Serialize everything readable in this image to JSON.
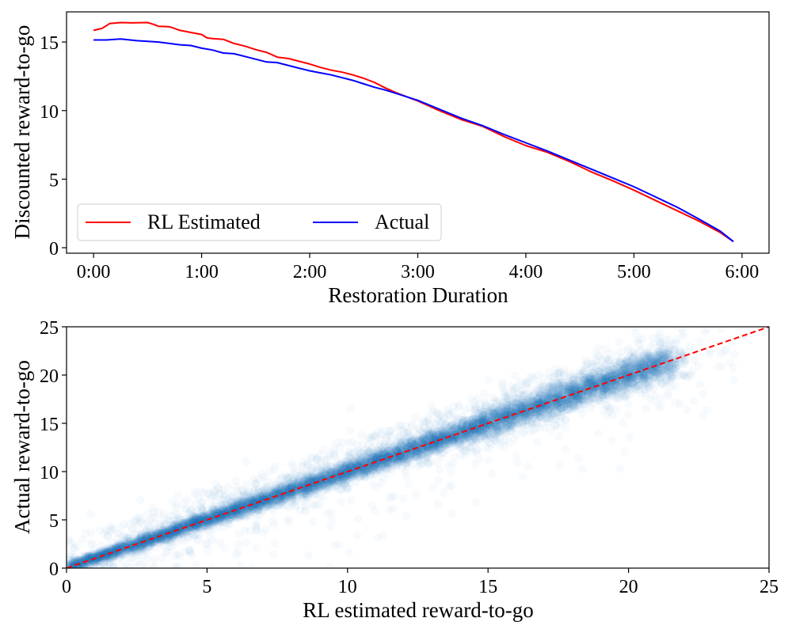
{
  "colors": {
    "estimated": "#ff0000",
    "actual": "#0000ff",
    "scatter": "#1f77b4",
    "diagonal": "#ff0000"
  },
  "chart_data": [
    {
      "type": "line",
      "xlabel": "Restoration Duration",
      "ylabel": "Discounted reward-to-go",
      "xlim": [
        -0.25,
        6.25
      ],
      "ylim": [
        -0.4,
        17.2
      ],
      "xticks": [
        0,
        1,
        2,
        3,
        4,
        5,
        6
      ],
      "xtick_labels": [
        "0:00",
        "1:00",
        "2:00",
        "3:00",
        "4:00",
        "5:00",
        "6:00"
      ],
      "yticks": [
        0,
        5,
        10,
        15
      ],
      "ytick_labels": [
        "0",
        "5",
        "10",
        "15"
      ],
      "legend": {
        "position": "lower-left",
        "columns": 2,
        "entries": [
          "RL Estimated",
          "Actual"
        ]
      },
      "series": [
        {
          "name": "RL Estimated",
          "x": [
            0,
            0.08,
            0.15,
            0.25,
            0.35,
            0.5,
            0.55,
            0.6,
            0.7,
            0.8,
            0.9,
            1.0,
            1.05,
            1.1,
            1.2,
            1.3,
            1.4,
            1.5,
            1.6,
            1.7,
            1.8,
            1.9,
            2.0,
            2.1,
            2.2,
            2.3,
            2.4,
            2.5,
            2.6,
            2.7,
            2.8,
            2.9,
            3.0,
            3.2,
            3.4,
            3.6,
            3.8,
            4.0,
            4.2,
            4.4,
            4.6,
            4.8,
            5.0,
            5.2,
            5.4,
            5.6,
            5.8,
            5.92
          ],
          "values": [
            15.85,
            16.0,
            16.35,
            16.42,
            16.4,
            16.42,
            16.3,
            16.15,
            16.12,
            15.85,
            15.7,
            15.55,
            15.3,
            15.25,
            15.2,
            14.9,
            14.7,
            14.45,
            14.25,
            13.9,
            13.8,
            13.6,
            13.4,
            13.15,
            12.95,
            12.8,
            12.6,
            12.35,
            12.05,
            11.65,
            11.3,
            11.0,
            10.7,
            10.0,
            9.35,
            8.85,
            8.1,
            7.45,
            6.95,
            6.3,
            5.55,
            4.9,
            4.2,
            3.45,
            2.7,
            1.95,
            1.1,
            0.45
          ]
        },
        {
          "name": "Actual",
          "x": [
            0,
            0.12,
            0.25,
            0.4,
            0.6,
            0.8,
            0.9,
            1.0,
            1.1,
            1.2,
            1.3,
            1.4,
            1.5,
            1.6,
            1.7,
            1.8,
            1.9,
            2.0,
            2.1,
            2.2,
            2.3,
            2.4,
            2.5,
            2.6,
            2.7,
            2.8,
            2.9,
            3.0,
            3.2,
            3.4,
            3.6,
            3.8,
            4.0,
            4.2,
            4.4,
            4.6,
            4.8,
            5.0,
            5.2,
            5.4,
            5.6,
            5.8,
            5.92
          ],
          "values": [
            15.15,
            15.15,
            15.22,
            15.1,
            15.0,
            14.8,
            14.75,
            14.55,
            14.42,
            14.2,
            14.15,
            13.95,
            13.75,
            13.55,
            13.5,
            13.3,
            13.1,
            12.9,
            12.75,
            12.6,
            12.4,
            12.2,
            11.95,
            11.7,
            11.5,
            11.25,
            11.0,
            10.75,
            10.1,
            9.45,
            8.9,
            8.25,
            7.65,
            7.05,
            6.4,
            5.75,
            5.1,
            4.45,
            3.7,
            2.95,
            2.1,
            1.2,
            0.45
          ]
        }
      ]
    },
    {
      "type": "scatter",
      "xlabel": "RL estimated reward-to-go",
      "ylabel": "Actual reward-to-go",
      "xlim": [
        0,
        25
      ],
      "ylim": [
        0,
        25
      ],
      "xticks": [
        0,
        5,
        10,
        15,
        20,
        25
      ],
      "xtick_labels": [
        "0",
        "5",
        "10",
        "15",
        "20",
        "25"
      ],
      "yticks": [
        0,
        5,
        10,
        15,
        20,
        25
      ],
      "ytick_labels": [
        "0",
        "5",
        "10",
        "15",
        "20",
        "25"
      ],
      "reference_line": {
        "style": "dashed",
        "from": [
          0,
          0
        ],
        "to": [
          25,
          25
        ]
      },
      "point_alpha": 0.03,
      "point_count": 9000,
      "point_distribution": "dense cloud along y = x from 0 to about 21.5, scattered outliers up to x = 24"
    }
  ]
}
